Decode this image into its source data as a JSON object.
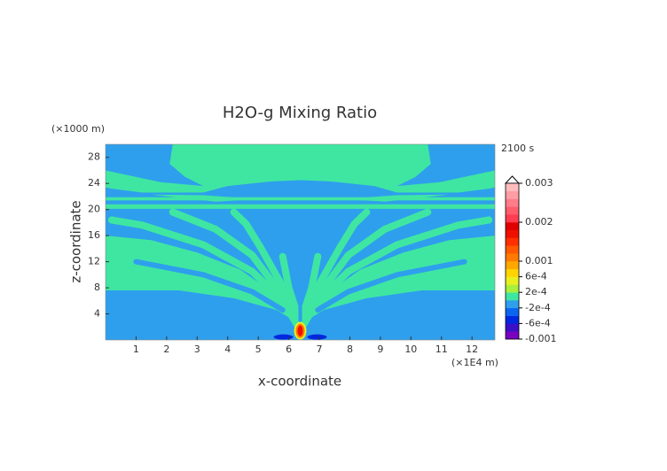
{
  "chart_data": {
    "type": "contour",
    "title": "H2O-g Mixing Ratio",
    "xlabel": "x-coordinate",
    "ylabel": "z-coordinate",
    "x_unit": "(×1E4 m)",
    "y_unit": "(×1000 m)",
    "time_label": "2100 s",
    "xlim": [
      0,
      12.75
    ],
    "xticks": [
      1,
      2,
      3,
      4,
      5,
      6,
      7,
      8,
      9,
      10,
      11,
      12
    ],
    "ylim": [
      0,
      30
    ],
    "yticks": [
      4,
      8,
      12,
      16,
      20,
      24,
      28
    ],
    "colorbar": {
      "clim": [
        -0.001,
        0.003
      ],
      "ticks": [
        -0.001,
        {
          "value": -0.0006,
          "label": "-6e-4"
        },
        {
          "value": -0.0002,
          "label": "-2e-4"
        },
        {
          "value": 0.0002,
          "label": "2e-4"
        },
        {
          "value": 0.0006,
          "label": "6e-4"
        },
        0.001,
        0.002,
        0.003
      ],
      "colors": [
        "#7a00c0",
        "#3a10c8",
        "#0028e0",
        "#0a66f0",
        "#2e9fec",
        "#3fe6a2",
        "#a8f03c",
        "#e8f020",
        "#ffd400",
        "#ffa800",
        "#ff7a00",
        "#ff5a00",
        "#ff3000",
        "#f01000",
        "#e00000",
        "#ff3c50",
        "#ff5c6c",
        "#ff7c88",
        "#ff9ca4",
        "#ffbcbc"
      ]
    }
  }
}
